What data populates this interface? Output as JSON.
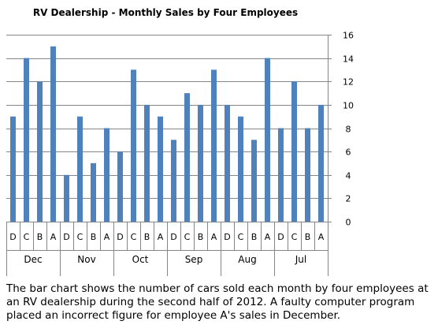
{
  "chart_data": {
    "type": "bar",
    "title": "RV Dealership - Monthly Sales by Four Employees",
    "xlabel": "",
    "ylabel": "",
    "ylim": [
      0,
      16
    ],
    "yticks": [
      0,
      2,
      4,
      6,
      8,
      10,
      12,
      14,
      16
    ],
    "y_axis_position": "right",
    "grid": true,
    "legend": "none",
    "bar_color": "#4F81BD",
    "groups": [
      {
        "month": "Dec",
        "categories": [
          "D",
          "C",
          "B",
          "A"
        ],
        "values": [
          9,
          14,
          12,
          15
        ]
      },
      {
        "month": "Nov",
        "categories": [
          "D",
          "C",
          "B",
          "A"
        ],
        "values": [
          4,
          9,
          5,
          8
        ]
      },
      {
        "month": "Oct",
        "categories": [
          "D",
          "C",
          "B",
          "A"
        ],
        "values": [
          6,
          13,
          10,
          9
        ]
      },
      {
        "month": "Sep",
        "categories": [
          "D",
          "C",
          "B",
          "A"
        ],
        "values": [
          7,
          11,
          10,
          13
        ]
      },
      {
        "month": "Aug",
        "categories": [
          "D",
          "C",
          "B",
          "A"
        ],
        "values": [
          10,
          9,
          7,
          14
        ]
      },
      {
        "month": "Jul",
        "categories": [
          "D",
          "C",
          "B",
          "A"
        ],
        "values": [
          8,
          12,
          8,
          10
        ]
      }
    ]
  },
  "caption": "The bar chart shows the number of cars sold each month by four employees at an RV dealership during the second half of 2012. A faulty computer program placed an incorrect figure for employee A's sales in December."
}
